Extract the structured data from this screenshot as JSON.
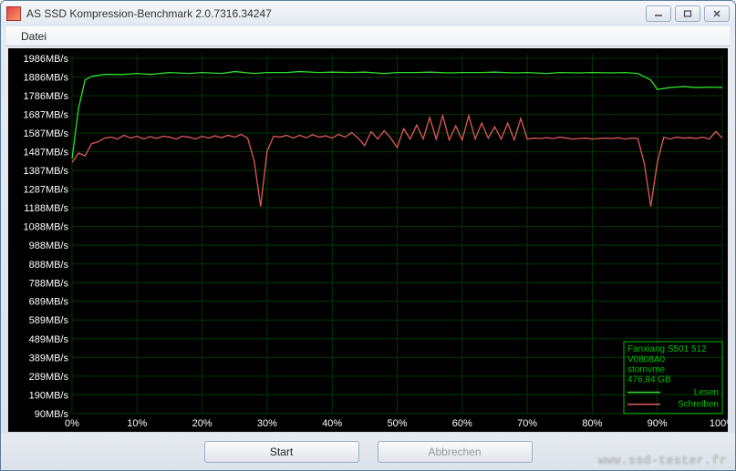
{
  "window": {
    "title": "AS SSD Kompression-Benchmark 2.0.7316.34247"
  },
  "menu": {
    "datei": "Datei"
  },
  "buttons": {
    "start": "Start",
    "abort": "Abbrechen"
  },
  "watermark": "www.ssd-tester.fr",
  "chart": {
    "background_color": "#000000",
    "grid_color": "#003800",
    "label_color": "#ffffff",
    "y_axis": {
      "ticks": [
        90,
        190,
        289,
        389,
        489,
        589,
        689,
        788,
        888,
        988,
        1088,
        1188,
        1287,
        1387,
        1487,
        1587,
        1687,
        1786,
        1886,
        1986
      ],
      "unit": "MB/s",
      "min": 90,
      "max": 2010
    },
    "x_axis": {
      "ticks": [
        0,
        10,
        20,
        30,
        40,
        50,
        60,
        70,
        80,
        90,
        100
      ],
      "unit": "%",
      "min": 0,
      "max": 100
    },
    "legend": {
      "device": "Fanxiang S501 512",
      "firmware": "V0808A0",
      "driver": "stornvme",
      "capacity": "476,94 GB",
      "read_label": "Lesen",
      "write_label": "Schreiben",
      "border_color": "#00c000",
      "read_color": "#2ee02e",
      "write_color": "#e05a5a"
    },
    "series": {
      "read": {
        "color": "#2ee02e",
        "points": [
          [
            0,
            1450
          ],
          [
            1,
            1720
          ],
          [
            2,
            1870
          ],
          [
            3,
            1890
          ],
          [
            5,
            1900
          ],
          [
            8,
            1900
          ],
          [
            10,
            1905
          ],
          [
            12,
            1900
          ],
          [
            15,
            1910
          ],
          [
            18,
            1905
          ],
          [
            20,
            1910
          ],
          [
            23,
            1905
          ],
          [
            25,
            1915
          ],
          [
            28,
            1905
          ],
          [
            30,
            1910
          ],
          [
            33,
            1910
          ],
          [
            35,
            1915
          ],
          [
            38,
            1910
          ],
          [
            40,
            1912
          ],
          [
            43,
            1910
          ],
          [
            45,
            1912
          ],
          [
            48,
            1905
          ],
          [
            50,
            1910
          ],
          [
            53,
            1910
          ],
          [
            55,
            1912
          ],
          [
            58,
            1908
          ],
          [
            60,
            1910
          ],
          [
            63,
            1910
          ],
          [
            65,
            1912
          ],
          [
            68,
            1908
          ],
          [
            70,
            1910
          ],
          [
            73,
            1905
          ],
          [
            75,
            1910
          ],
          [
            78,
            1908
          ],
          [
            80,
            1910
          ],
          [
            83,
            1908
          ],
          [
            85,
            1910
          ],
          [
            87,
            1905
          ],
          [
            89,
            1870
          ],
          [
            90,
            1820
          ],
          [
            92,
            1830
          ],
          [
            94,
            1835
          ],
          [
            96,
            1830
          ],
          [
            98,
            1832
          ],
          [
            100,
            1830
          ]
        ]
      },
      "write": {
        "color": "#e05a5a",
        "points": [
          [
            0,
            1430
          ],
          [
            1,
            1480
          ],
          [
            2,
            1465
          ],
          [
            3,
            1530
          ],
          [
            4,
            1540
          ],
          [
            5,
            1560
          ],
          [
            6,
            1565
          ],
          [
            7,
            1555
          ],
          [
            8,
            1575
          ],
          [
            9,
            1560
          ],
          [
            10,
            1570
          ],
          [
            11,
            1555
          ],
          [
            12,
            1568
          ],
          [
            13,
            1558
          ],
          [
            14,
            1570
          ],
          [
            15,
            1565
          ],
          [
            16,
            1555
          ],
          [
            17,
            1570
          ],
          [
            18,
            1565
          ],
          [
            19,
            1555
          ],
          [
            20,
            1570
          ],
          [
            21,
            1560
          ],
          [
            22,
            1572
          ],
          [
            23,
            1562
          ],
          [
            24,
            1575
          ],
          [
            25,
            1565
          ],
          [
            26,
            1580
          ],
          [
            27,
            1560
          ],
          [
            28,
            1440
          ],
          [
            29,
            1195
          ],
          [
            30,
            1490
          ],
          [
            31,
            1570
          ],
          [
            32,
            1565
          ],
          [
            33,
            1575
          ],
          [
            34,
            1560
          ],
          [
            35,
            1575
          ],
          [
            36,
            1562
          ],
          [
            37,
            1578
          ],
          [
            38,
            1565
          ],
          [
            39,
            1572
          ],
          [
            40,
            1560
          ],
          [
            41,
            1580
          ],
          [
            42,
            1565
          ],
          [
            43,
            1590
          ],
          [
            44,
            1560
          ],
          [
            45,
            1520
          ],
          [
            46,
            1595
          ],
          [
            47,
            1555
          ],
          [
            48,
            1600
          ],
          [
            49,
            1560
          ],
          [
            50,
            1510
          ],
          [
            51,
            1610
          ],
          [
            52,
            1555
          ],
          [
            53,
            1630
          ],
          [
            54,
            1555
          ],
          [
            55,
            1670
          ],
          [
            56,
            1555
          ],
          [
            57,
            1680
          ],
          [
            58,
            1550
          ],
          [
            59,
            1625
          ],
          [
            60,
            1550
          ],
          [
            61,
            1680
          ],
          [
            62,
            1555
          ],
          [
            63,
            1640
          ],
          [
            64,
            1560
          ],
          [
            65,
            1620
          ],
          [
            66,
            1555
          ],
          [
            67,
            1640
          ],
          [
            68,
            1550
          ],
          [
            69,
            1665
          ],
          [
            70,
            1555
          ],
          [
            71,
            1560
          ],
          [
            72,
            1558
          ],
          [
            73,
            1562
          ],
          [
            74,
            1558
          ],
          [
            75,
            1565
          ],
          [
            76,
            1560
          ],
          [
            77,
            1555
          ],
          [
            78,
            1558
          ],
          [
            79,
            1560
          ],
          [
            80,
            1555
          ],
          [
            81,
            1558
          ],
          [
            82,
            1560
          ],
          [
            83,
            1558
          ],
          [
            84,
            1562
          ],
          [
            85,
            1555
          ],
          [
            86,
            1560
          ],
          [
            87,
            1558
          ],
          [
            88,
            1425
          ],
          [
            89,
            1195
          ],
          [
            90,
            1430
          ],
          [
            91,
            1565
          ],
          [
            92,
            1555
          ],
          [
            93,
            1565
          ],
          [
            94,
            1560
          ],
          [
            95,
            1562
          ],
          [
            96,
            1558
          ],
          [
            97,
            1565
          ],
          [
            98,
            1555
          ],
          [
            99,
            1595
          ],
          [
            100,
            1560
          ]
        ]
      }
    }
  }
}
